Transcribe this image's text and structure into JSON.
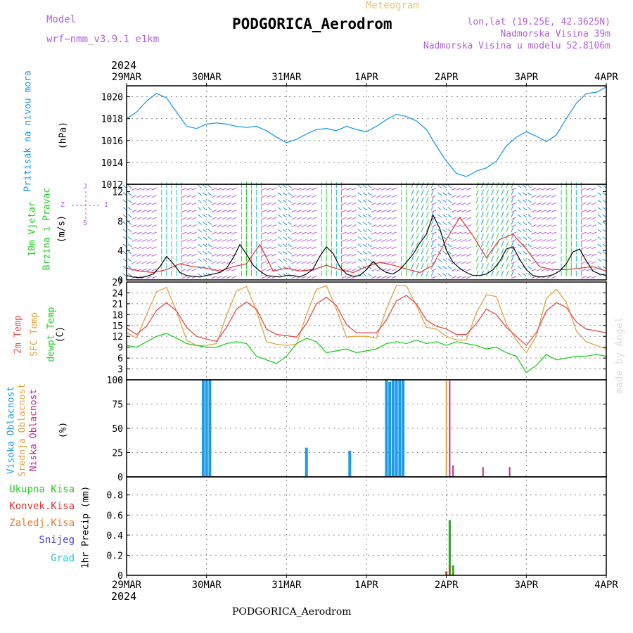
{
  "header": {
    "model_label": "Model",
    "model_run": "wrf−nmm_v3.9.1  e1km",
    "meteogram_label": "Meteogram",
    "station": "PODGORICA_Aerodrom",
    "lonlat": "lon,lat (19.25E, 42.3625N)",
    "elevation": "Nadmorska Visina 39m",
    "model_elevation": "Nadmorska Visina u modelu 52.8106m",
    "year": "2024",
    "footer": "PODGORICA_Aerodrom",
    "signature": "made by Angel"
  },
  "time_axis": {
    "tick_labels": [
      "29MAR",
      "30MAR",
      "31MAR",
      "1APR",
      "2APR",
      "3APR",
      "4APR"
    ]
  },
  "colors": {
    "pressure": "#1e9be6",
    "wind_speed": "#000000",
    "wind_gust": "#e53333",
    "t2m": "#e84a4a",
    "tsfc": "#e0a442",
    "dewpt": "#22cc22",
    "high_cloud": "#1e9be6",
    "mid_cloud": "#e0a442",
    "low_cloud": "#c02b8f",
    "total_precip": "#22aa22",
    "conv_precip": "#e53333",
    "frozen_precip": "#e87a30",
    "snow": "#4444dd",
    "graupel": "#2ac7c7",
    "label_purple": "#b25fdb"
  },
  "chart_data": [
    {
      "type": "line",
      "ylabel": "Pritisak na nivou mora",
      "unit": "(hPa)",
      "ylim": [
        1012,
        1021
      ],
      "yticks": [
        1012,
        1014,
        1016,
        1018,
        1020
      ],
      "grid": true,
      "series": [
        {
          "x": [
            0,
            1,
            2,
            3,
            4,
            5,
            6,
            7,
            8,
            9,
            10,
            11,
            12,
            13,
            14,
            15,
            16,
            17,
            18,
            19,
            20,
            21,
            22,
            23,
            24,
            25,
            26,
            27,
            28,
            29,
            30,
            31,
            32,
            33,
            34,
            35,
            36,
            37,
            38,
            39,
            40,
            41,
            42,
            43,
            44,
            45,
            46,
            47,
            48
          ],
          "values": [
            1018.0,
            1018.6,
            1019.6,
            1020.3,
            1019.9,
            1018.6,
            1017.3,
            1017.1,
            1017.5,
            1017.6,
            1017.5,
            1017.3,
            1017.2,
            1017.3,
            1016.9,
            1016.3,
            1015.8,
            1016.1,
            1016.6,
            1017.0,
            1017.1,
            1016.9,
            1017.3,
            1017.0,
            1016.8,
            1017.3,
            1017.9,
            1018.4,
            1018.2,
            1017.8,
            1017.0,
            1015.5,
            1014.1,
            1013.0,
            1012.7,
            1013.2,
            1013.5,
            1014.1,
            1015.5,
            1016.3,
            1016.8,
            1016.4,
            1015.9,
            1016.5,
            1018.0,
            1019.4,
            1020.3,
            1020.4,
            1020.9
          ]
        }
      ]
    },
    {
      "type": "line",
      "ylabel": "10m Vjetar Brzina i Pravac",
      "unit": "(m/s)",
      "ylim": [
        0,
        13
      ],
      "yticks": [
        0,
        4,
        8,
        12
      ],
      "direction_legend": [
        "J",
        "S",
        "Z",
        "I"
      ],
      "series": [
        {
          "x": [
            0,
            2,
            4,
            6,
            8,
            10,
            12,
            14,
            16,
            18,
            20,
            22,
            24,
            26,
            28,
            30,
            32,
            34,
            36,
            38,
            40,
            42,
            44,
            46,
            48,
            50,
            52,
            54,
            56,
            58,
            60,
            62,
            64,
            66,
            68,
            70,
            72,
            74,
            76,
            78,
            80,
            82,
            84,
            86,
            88,
            90,
            92,
            94,
            96,
            98,
            100,
            102,
            104,
            106,
            108,
            110,
            112,
            114,
            116,
            118,
            120,
            122,
            124,
            126,
            128,
            130,
            132,
            134,
            136,
            138,
            140,
            142,
            144
          ],
          "values": [
            0.6,
            0.4,
            0.3,
            0.5,
            0.8,
            1.8,
            3.2,
            2.2,
            1.0,
            0.6,
            0.5,
            0.4,
            0.6,
            0.8,
            1.0,
            1.6,
            3.0,
            4.8,
            3.5,
            2.0,
            1.2,
            0.6,
            0.5,
            0.4,
            0.6,
            0.6,
            0.4,
            0.8,
            1.5,
            3.2,
            4.5,
            3.6,
            1.8,
            0.8,
            0.5,
            0.6,
            1.4,
            2.5,
            1.6,
            1.0,
            0.8,
            1.4,
            2.4,
            3.5,
            5.0,
            6.2,
            8.8,
            7.0,
            4.0,
            2.4,
            1.6,
            1.0,
            0.6,
            0.6,
            0.8,
            1.4,
            2.5,
            4.2,
            4.5,
            2.8,
            1.4,
            0.6,
            0.4,
            0.5,
            0.7,
            1.2,
            2.2,
            3.8,
            4.2,
            2.6,
            1.2,
            0.8,
            0.6
          ]
        },
        {
          "x": [
            0,
            4,
            8,
            12,
            16,
            20,
            24,
            28,
            32,
            36,
            40,
            44,
            48,
            52,
            56,
            60,
            64,
            68,
            72,
            76,
            80,
            84,
            88,
            92,
            96,
            100,
            104,
            108,
            112,
            116,
            120,
            124,
            128,
            132,
            136,
            140,
            144
          ],
          "values": [
            1.6,
            1.2,
            1.0,
            1.4,
            2.2,
            1.8,
            1.6,
            1.2,
            1.8,
            2.2,
            4.8,
            1.2,
            1.6,
            1.2,
            1.4,
            2.0,
            1.4,
            1.0,
            1.8,
            2.4,
            2.0,
            1.5,
            1.0,
            2.0,
            5.5,
            8.5,
            6.0,
            3.0,
            5.5,
            6.2,
            4.2,
            1.8,
            1.4,
            1.4,
            1.6,
            1.8,
            1.2
          ]
        }
      ]
    },
    {
      "type": "line",
      "ylabel": "2m Temp / SFC Temp / dewpt Temp",
      "unit": "(C)",
      "ylim": [
        0,
        27
      ],
      "yticks": [
        0,
        3,
        6,
        9,
        12,
        15,
        18,
        21,
        24,
        27
      ],
      "grid": true,
      "series": [
        {
          "name": "2m Temp",
          "x": [
            0,
            3,
            6,
            9,
            12,
            15,
            18,
            21,
            24,
            27,
            30,
            33,
            36,
            39,
            42,
            45,
            48,
            51,
            54,
            57,
            60,
            63,
            66,
            69,
            72,
            75,
            78,
            81,
            84,
            87,
            90,
            93,
            96,
            99,
            102,
            105,
            108,
            111,
            114,
            117,
            120,
            123,
            126,
            129,
            132,
            135,
            138,
            141,
            144
          ],
          "values": [
            14.3,
            12.5,
            14.8,
            19.2,
            21.3,
            19.0,
            14.5,
            12.0,
            11.2,
            10.6,
            14.5,
            19.5,
            21.5,
            19.5,
            14.0,
            12.5,
            12.2,
            11.8,
            15.5,
            21.0,
            22.8,
            20.5,
            15.2,
            13.0,
            13.0,
            13.0,
            16.5,
            21.8,
            23.3,
            21.0,
            16.5,
            14.8,
            14.0,
            12.5,
            12.5,
            15.5,
            19.5,
            18.0,
            14.5,
            12.0,
            9.5,
            13.0,
            19.0,
            21.3,
            20.0,
            16.0,
            14.0,
            13.5,
            13.0
          ]
        },
        {
          "name": "SFC Temp",
          "x": [
            0,
            3,
            6,
            9,
            12,
            15,
            18,
            21,
            24,
            27,
            30,
            33,
            36,
            39,
            42,
            45,
            48,
            51,
            54,
            57,
            60,
            63,
            66,
            69,
            72,
            75,
            78,
            81,
            84,
            87,
            90,
            93,
            96,
            99,
            102,
            105,
            108,
            111,
            114,
            117,
            120,
            123,
            126,
            129,
            132,
            135,
            138,
            141,
            144
          ],
          "values": [
            13.0,
            11.5,
            18.0,
            24.3,
            25.5,
            19.0,
            11.0,
            9.5,
            9.5,
            10.0,
            17.8,
            24.5,
            25.8,
            19.0,
            10.5,
            9.8,
            9.5,
            9.8,
            18.0,
            25.0,
            26.0,
            19.5,
            11.8,
            12.0,
            12.0,
            11.5,
            19.5,
            26.0,
            26.0,
            20.5,
            14.5,
            14.0,
            12.0,
            11.0,
            11.0,
            18.5,
            23.5,
            23.0,
            15.5,
            11.0,
            7.5,
            12.0,
            22.5,
            25.0,
            21.5,
            13.5,
            10.5,
            9.5,
            8.5
          ]
        },
        {
          "name": "dewpt Temp",
          "x": [
            0,
            3,
            6,
            9,
            12,
            15,
            18,
            21,
            24,
            27,
            30,
            33,
            36,
            39,
            42,
            45,
            48,
            51,
            54,
            57,
            60,
            63,
            66,
            69,
            72,
            75,
            78,
            81,
            84,
            87,
            90,
            93,
            96,
            99,
            102,
            105,
            108,
            111,
            114,
            117,
            120,
            123,
            126,
            129,
            132,
            135,
            138,
            141,
            144
          ],
          "values": [
            9.5,
            9.0,
            10.5,
            12.0,
            12.8,
            11.5,
            10.0,
            9.5,
            9.0,
            9.0,
            10.0,
            10.5,
            10.0,
            6.5,
            5.5,
            4.5,
            6.5,
            10.0,
            11.5,
            10.5,
            7.5,
            8.0,
            8.5,
            7.5,
            8.0,
            8.5,
            10.0,
            10.5,
            10.0,
            11.0,
            10.0,
            10.5,
            9.5,
            10.5,
            10.0,
            9.5,
            8.5,
            9.0,
            7.5,
            6.5,
            2.0,
            4.0,
            7.0,
            5.5,
            6.0,
            6.5,
            6.5,
            7.0,
            6.5
          ]
        }
      ]
    },
    {
      "type": "bar",
      "ylabel": "Visoka Oblacnost / Srednja Oblacnost / Niska Oblacnost",
      "unit": "(%)",
      "ylim": [
        0,
        100
      ],
      "yticks": [
        0,
        25,
        50,
        75,
        100
      ],
      "grid": true,
      "series": [
        {
          "name": "Visoka Oblacnost",
          "x": [
            23,
            24,
            25,
            54,
            67,
            78,
            79,
            80,
            81,
            82,
            83
          ],
          "values": [
            100,
            100,
            100,
            30,
            27,
            100,
            98,
            100,
            100,
            100,
            100
          ]
        },
        {
          "name": "Srednja Oblacnost",
          "x": [
            96
          ],
          "values": [
            99
          ]
        },
        {
          "name": "Niska Oblacnost",
          "x": [
            97,
            98,
            107,
            115
          ],
          "values": [
            99,
            12,
            10,
            10
          ]
        }
      ]
    },
    {
      "type": "bar",
      "ylabel": "1hr Precip",
      "unit": "(mm)",
      "ylim": [
        0,
        0.98
      ],
      "yticks": [
        0,
        0.2,
        0.4,
        0.6,
        0.8
      ],
      "grid": true,
      "series": [
        {
          "name": "Ukupna Kisa",
          "x": [
            96,
            97,
            98
          ],
          "values": [
            0.04,
            0.55,
            0.1
          ]
        },
        {
          "name": "Konvek.Kisa",
          "x": [
            96,
            97
          ],
          "values": [
            0.03,
            0.1
          ]
        },
        {
          "name": "Zaledj.Kisa",
          "x": [],
          "values": []
        },
        {
          "name": "Snijeg",
          "x": [],
          "values": []
        },
        {
          "name": "Grad",
          "x": [],
          "values": []
        }
      ]
    }
  ]
}
